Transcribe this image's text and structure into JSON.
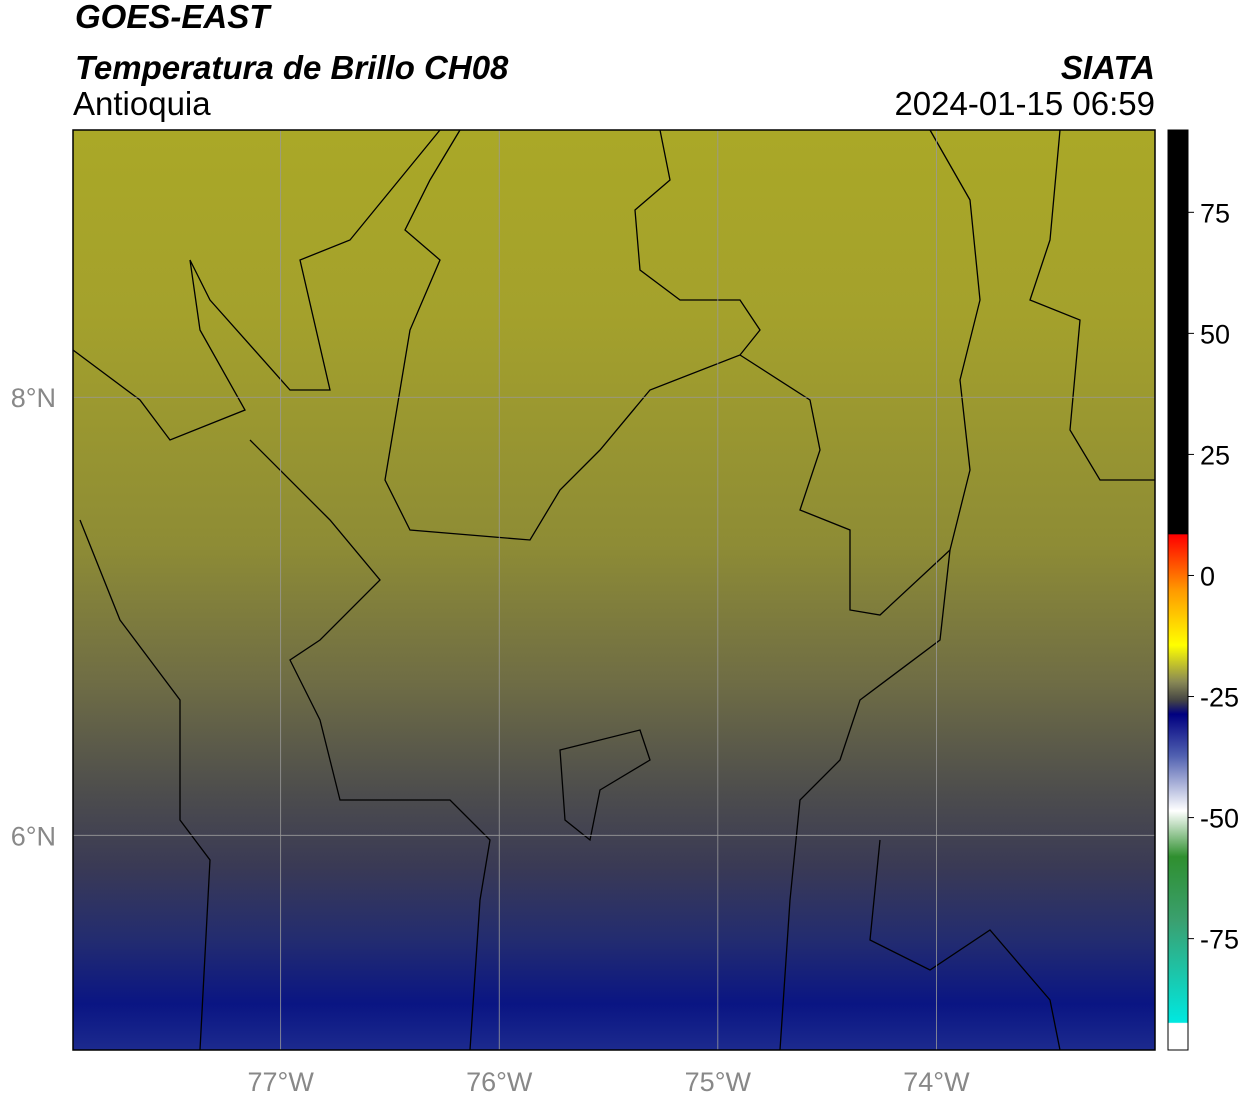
{
  "header": {
    "satellite": "GOES-EAST",
    "product": "Temperatura de Brillo CH08",
    "organization": "SIATA",
    "region": "Antioquia",
    "timestamp": "2024-01-15 06:59"
  },
  "map": {
    "xlim": [
      -77.95,
      -73.0
    ],
    "ylim": [
      5.02,
      9.22
    ],
    "xticks": [
      {
        "value": -77,
        "label": "77°W"
      },
      {
        "value": -76,
        "label": "76°W"
      },
      {
        "value": -75,
        "label": "75°W"
      },
      {
        "value": -74,
        "label": "74°W"
      }
    ],
    "yticks": [
      {
        "value": 8,
        "label": "8°N"
      },
      {
        "value": 6,
        "label": "6°N"
      }
    ]
  },
  "colorbar": {
    "lim": [
      -98,
      92
    ],
    "ticks": [
      75,
      50,
      25,
      0,
      -25,
      -50,
      -75
    ]
  }
}
